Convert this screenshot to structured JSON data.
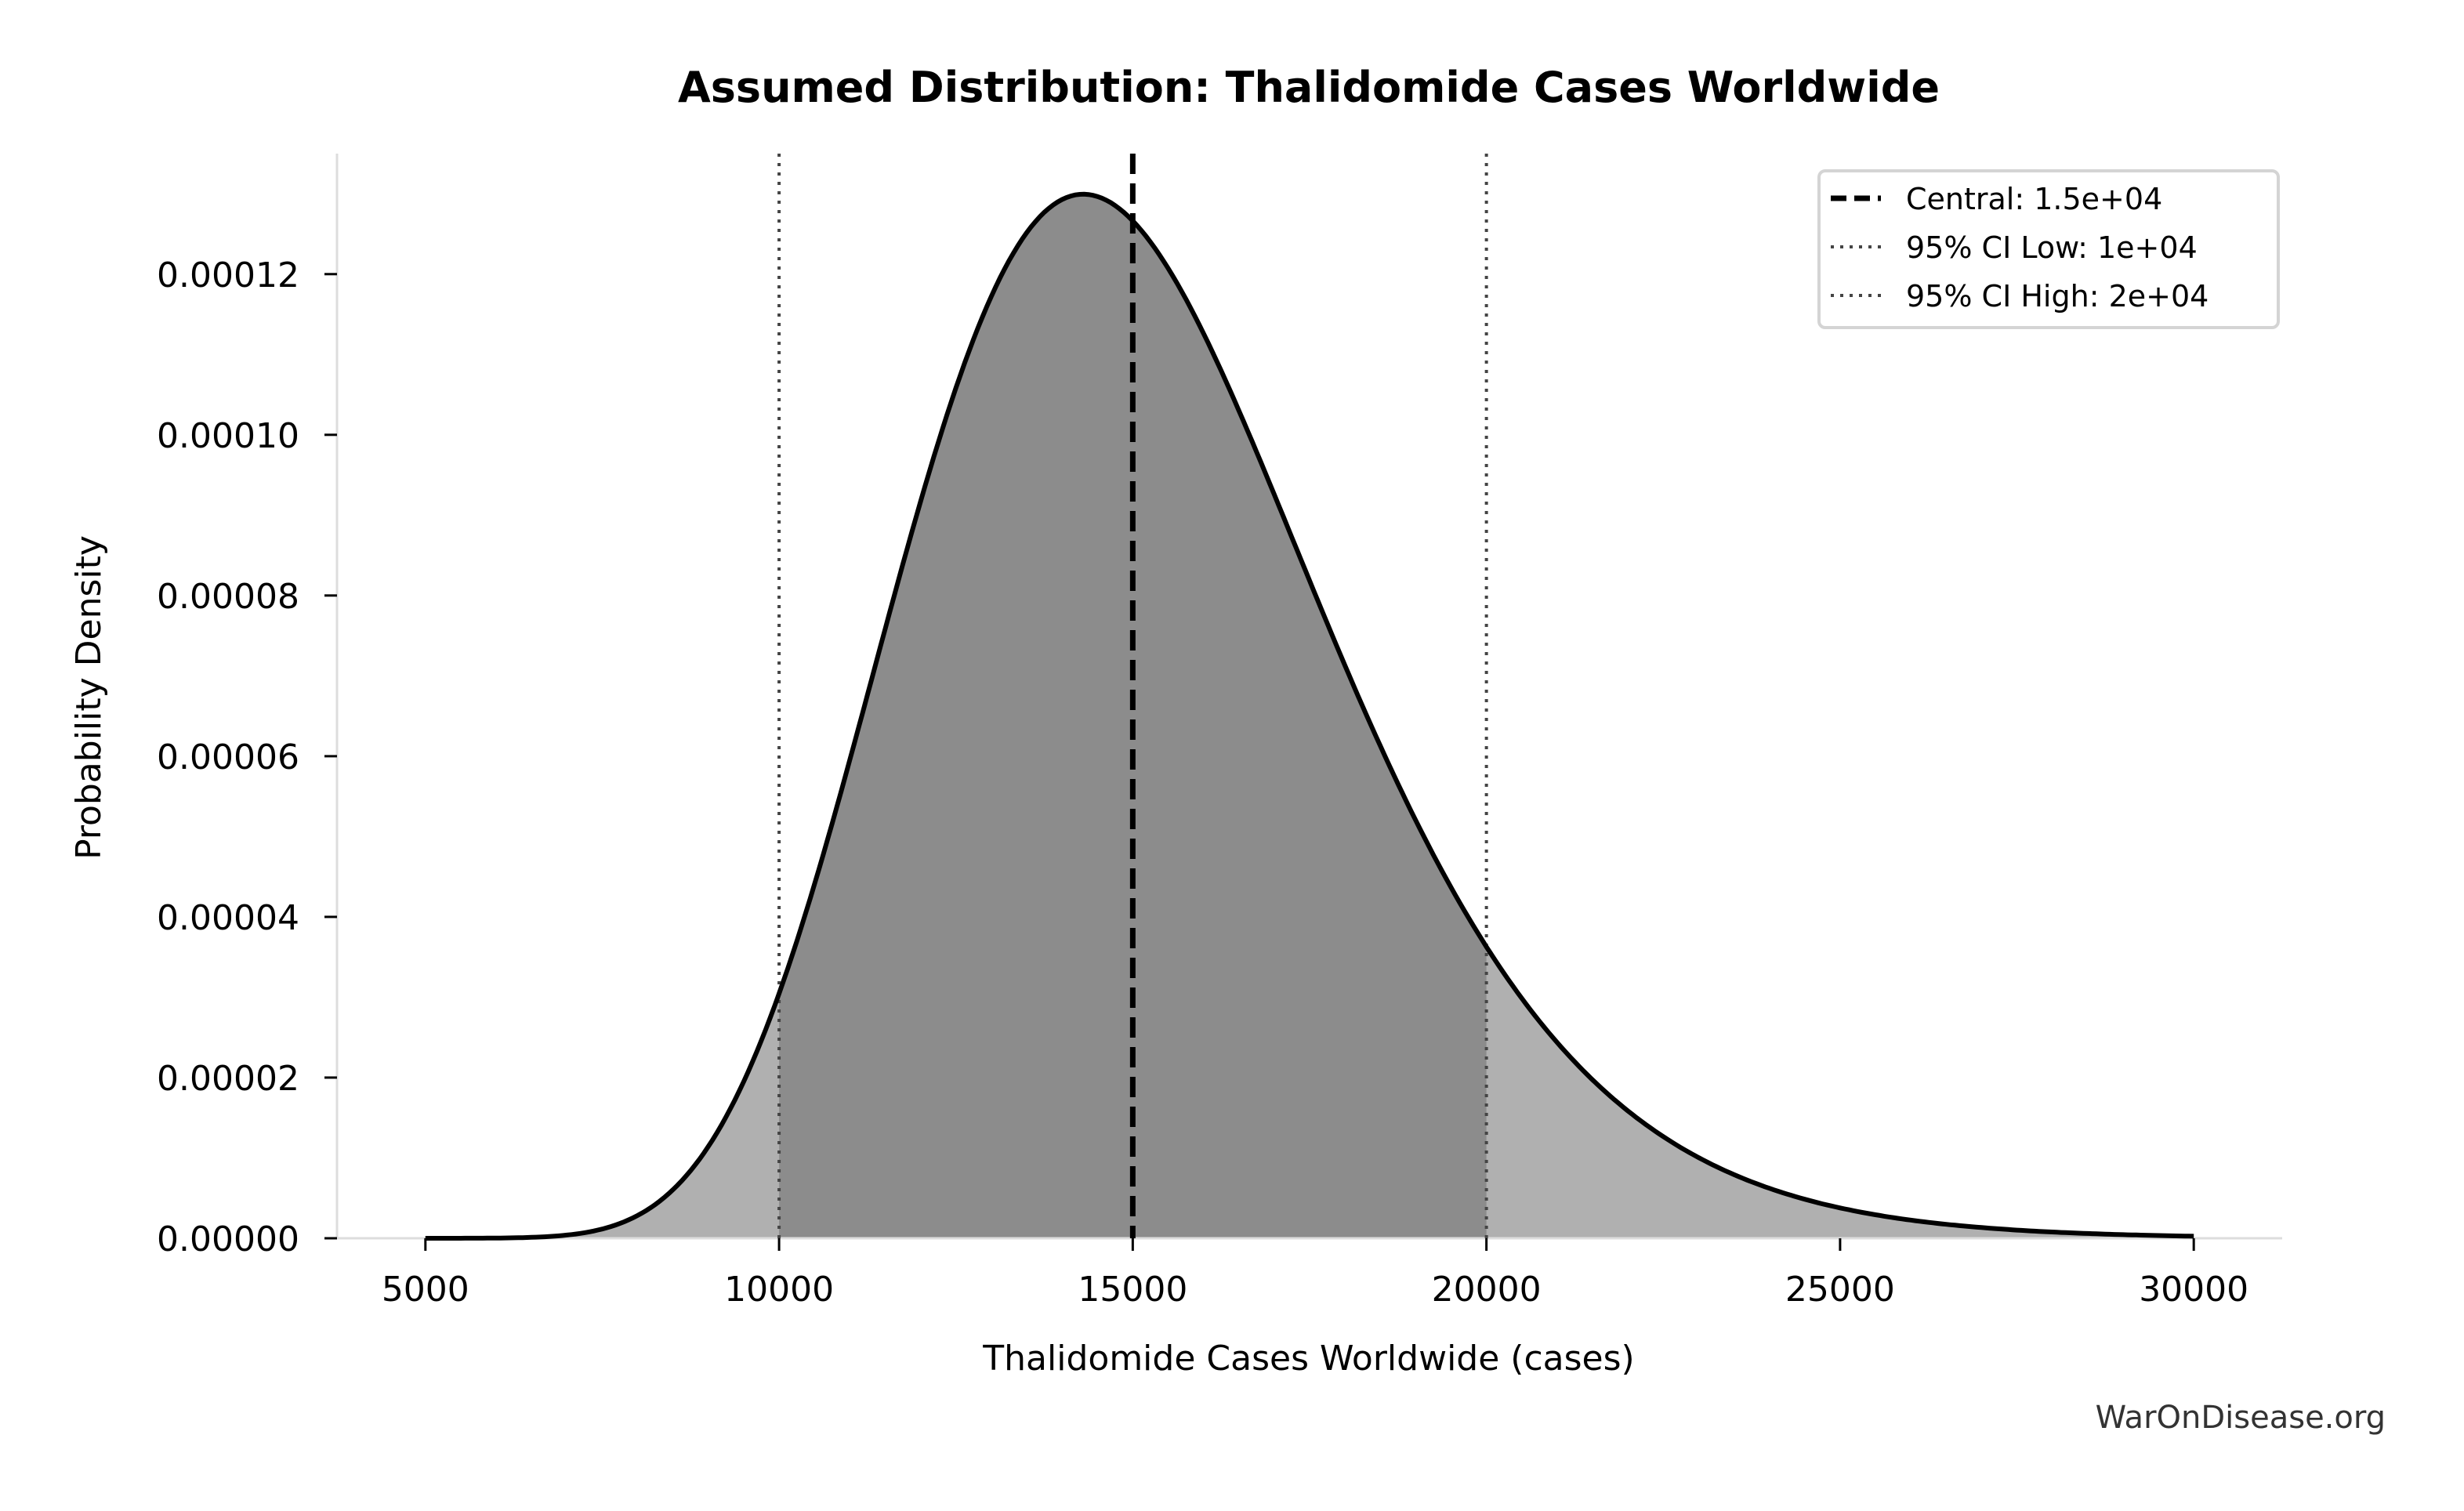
{
  "chart_data": {
    "type": "area",
    "title": "Assumed Distribution: Thalidomide Cases Worldwide",
    "xlabel": "Thalidomide Cases Worldwide (cases)",
    "ylabel": "Probability Density",
    "xlim": [
      3750,
      31250
    ],
    "ylim": [
      0,
      0.000135
    ],
    "x_ticks": [
      5000,
      10000,
      15000,
      20000,
      25000,
      30000
    ],
    "x_tick_labels": [
      "5000",
      "10000",
      "15000",
      "20000",
      "25000",
      "30000"
    ],
    "y_ticks": [
      0,
      2e-05,
      4e-05,
      6e-05,
      8e-05,
      0.0001,
      0.00012
    ],
    "y_tick_labels": [
      "0.00000",
      "0.00002",
      "0.00004",
      "0.00006",
      "0.00008",
      "0.00010",
      "0.00012"
    ],
    "distribution": {
      "family": "lognormal",
      "median": 14945,
      "sigma": 0.21,
      "x_range": [
        5000,
        30000
      ]
    },
    "key_points": [
      {
        "x": 10000,
        "y": 3e-05
      },
      {
        "x": 14300,
        "y": 0.000129
      },
      {
        "x": 15000,
        "y": 0.000127
      },
      {
        "x": 20000,
        "y": 3.6e-05
      },
      {
        "x": 25000,
        "y": 4e-06
      }
    ],
    "reference_lines": [
      {
        "label": "Central: 1.5e+04",
        "x": 15000,
        "style": "dashed",
        "color": "#000000"
      },
      {
        "label": "95% CI Low: 1e+04",
        "x": 10000,
        "style": "dotted",
        "color": "#444444"
      },
      {
        "label": "95% CI High: 2e+04",
        "x": 20000,
        "style": "dotted",
        "color": "#444444"
      }
    ],
    "shaded_interval": [
      10000,
      20000
    ],
    "colors": {
      "outer_fill": "#b0b0b0",
      "ci_fill": "#8c8c8c",
      "curve": "#000000",
      "spine": "#dddddd"
    },
    "legend_position": "top-right",
    "grid": false
  },
  "watermark": "WarOnDisease.org"
}
